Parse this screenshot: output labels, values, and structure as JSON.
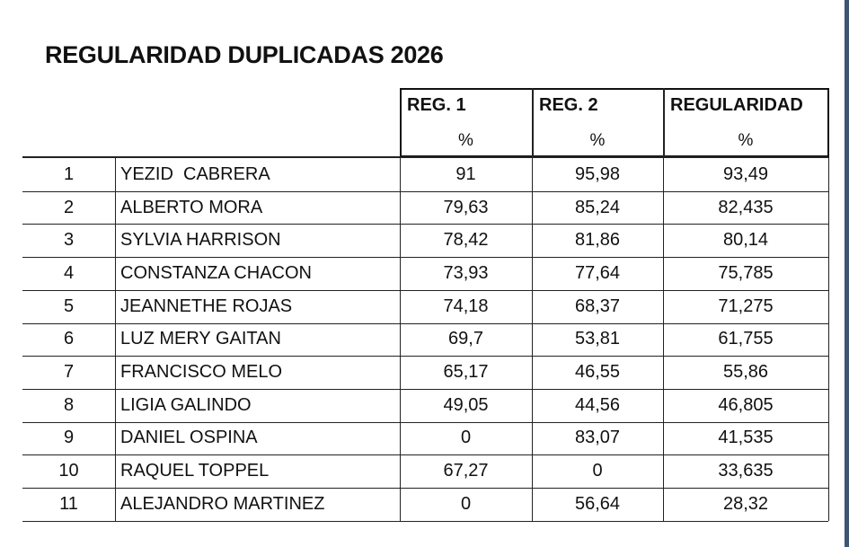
{
  "title": "REGULARIDAD DUPLICADAS 2026",
  "table": {
    "columns": [
      {
        "label": "REG. 1",
        "unit": "%"
      },
      {
        "label": "REG. 2",
        "unit": "%"
      },
      {
        "label": "REGULARIDAD",
        "unit": "%"
      }
    ],
    "rows": [
      [
        "1",
        "YEZID  CABRERA",
        "91",
        "95,98",
        "93,49"
      ],
      [
        "2",
        "ALBERTO MORA",
        "79,63",
        "85,24",
        "82,435"
      ],
      [
        "3",
        "SYLVIA HARRISON",
        "78,42",
        "81,86",
        "80,14"
      ],
      [
        "4",
        "CONSTANZA CHACON",
        "73,93",
        "77,64",
        "75,785"
      ],
      [
        "5",
        "JEANNETHE ROJAS",
        "74,18",
        "68,37",
        "71,275"
      ],
      [
        "6",
        "LUZ MERY GAITAN",
        "69,7",
        "53,81",
        "61,755"
      ],
      [
        "7",
        "FRANCISCO MELO",
        "65,17",
        "46,55",
        "55,86"
      ],
      [
        "8",
        "LIGIA GALINDO",
        "49,05",
        "44,56",
        "46,805"
      ],
      [
        "9",
        "DANIEL OSPINA",
        "0",
        "83,07",
        "41,535"
      ],
      [
        "10",
        "RAQUEL TOPPEL",
        "67,27",
        "0",
        "33,635"
      ],
      [
        "11",
        "ALEJANDRO MARTINEZ",
        "0",
        "56,64",
        "28,32"
      ]
    ]
  }
}
